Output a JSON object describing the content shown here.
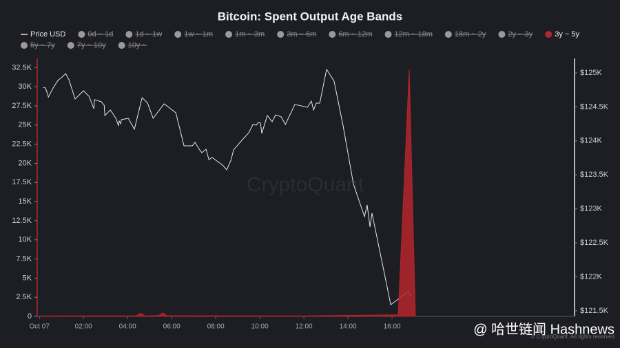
{
  "chart_data": {
    "type": "line-area",
    "title": "Bitcoin: Spent Output Age Bands",
    "watermark": "CryptoQuant",
    "copyright": "© CryptoQuant. All rights reserved",
    "overlay_text": "@ 哈世链闻 Hashnews",
    "xlim": [
      -0.1,
      24.28
    ],
    "xticks": [
      {
        "value": 0,
        "label": "Oct 07"
      },
      {
        "value": 2,
        "label": "02:00"
      },
      {
        "value": 4,
        "label": "04:00"
      },
      {
        "value": 6,
        "label": "06:00"
      },
      {
        "value": 8,
        "label": "08:00"
      },
      {
        "value": 10,
        "label": "10:00"
      },
      {
        "value": 12,
        "label": "12:00"
      },
      {
        "value": 14,
        "label": "14:00"
      },
      {
        "value": 16,
        "label": "16:00"
      }
    ],
    "ylim": [
      0,
      33700
    ],
    "yticks": [
      0,
      {
        "value": 2500,
        "label": "2.5K"
      },
      {
        "value": 5000,
        "label": "5K"
      },
      {
        "value": 7500,
        "label": "7.5K"
      },
      {
        "value": 10000,
        "label": "10K"
      },
      {
        "value": 12500,
        "label": "12.5K"
      },
      {
        "value": 15000,
        "label": "15K"
      },
      {
        "value": 17500,
        "label": "17.5K"
      },
      {
        "value": 20000,
        "label": "20K"
      },
      {
        "value": 22500,
        "label": "22.5K"
      },
      {
        "value": 25000,
        "label": "25K"
      },
      {
        "value": 27500,
        "label": "27.5K"
      },
      {
        "value": 30000,
        "label": "30K"
      },
      {
        "value": 32500,
        "label": "32.5K"
      }
    ],
    "y2lim": [
      121419,
      125212
    ],
    "y2ticks": [
      {
        "value": 121500,
        "label": "$121.5K"
      },
      {
        "value": 122000,
        "label": "$122K"
      },
      {
        "value": 122500,
        "label": "$122.5K"
      },
      {
        "value": 123000,
        "label": "$123K"
      },
      {
        "value": 123500,
        "label": "$123.5K"
      },
      {
        "value": 124000,
        "label": "$124K"
      },
      {
        "value": 124500,
        "label": "$124.5K"
      },
      {
        "value": 125000,
        "label": "$125K"
      }
    ],
    "series": [
      {
        "name": "Price USD",
        "kind": "line",
        "axis": "y2",
        "color": "#e6e6e6",
        "visible": true,
        "x": [
          0.16,
          0.28,
          0.41,
          0.62,
          0.84,
          1.03,
          1.19,
          1.34,
          1.62,
          2.0,
          2.25,
          2.47,
          2.5,
          2.81,
          2.94,
          2.97,
          3.22,
          3.47,
          3.59,
          3.62,
          3.69,
          3.72,
          4.03,
          4.31,
          4.66,
          4.91,
          5.16,
          5.66,
          6.19,
          6.56,
          6.94,
          7.06,
          7.25,
          7.37,
          7.56,
          7.69,
          7.84,
          8.09,
          8.31,
          8.5,
          8.69,
          8.81,
          9.16,
          9.5,
          9.69,
          9.84,
          9.94,
          10.03,
          10.09,
          10.34,
          10.56,
          10.72,
          10.97,
          11.16,
          11.59,
          12.16,
          12.34,
          12.44,
          12.56,
          12.72,
          13.03,
          13.37,
          13.78,
          14.25,
          14.75,
          14.87,
          15.0,
          15.09,
          15.41,
          15.59,
          15.94,
          16.28,
          16.72,
          16.84
        ],
        "values": [
          124788,
          124777,
          124646,
          124777,
          124889,
          124939,
          124990,
          124899,
          124616,
          124737,
          124656,
          124474,
          124606,
          124575,
          124525,
          124373,
          124454,
          124332,
          124221,
          124292,
          124251,
          124312,
          124332,
          124171,
          124636,
          124555,
          124332,
          124545,
          124413,
          123928,
          123928,
          123979,
          123877,
          123827,
          123877,
          123725,
          123756,
          123695,
          123644,
          123574,
          123715,
          123867,
          123999,
          124120,
          124241,
          124231,
          124272,
          124262,
          124110,
          124373,
          124282,
          124383,
          124353,
          124241,
          124535,
          124494,
          124585,
          124454,
          124555,
          124555,
          125051,
          124879,
          124221,
          123361,
          122886,
          123058,
          122734,
          122937,
          122431,
          122148,
          121591,
          121672,
          121783,
          121723
        ]
      },
      {
        "name": "0d ~ 1d",
        "color": "#9a9a9a",
        "visible": false
      },
      {
        "name": "1d ~ 1w",
        "color": "#9a9a9a",
        "visible": false
      },
      {
        "name": "1w ~ 1m",
        "color": "#9a9a9a",
        "visible": false
      },
      {
        "name": "1m ~ 3m",
        "color": "#9a9a9a",
        "visible": false
      },
      {
        "name": "3m ~ 6m",
        "color": "#9a9a9a",
        "visible": false
      },
      {
        "name": "6m ~ 12m",
        "color": "#9a9a9a",
        "visible": false
      },
      {
        "name": "12m ~ 18m",
        "color": "#9a9a9a",
        "visible": false
      },
      {
        "name": "18m ~ 2y",
        "color": "#9a9a9a",
        "visible": false
      },
      {
        "name": "2y ~ 3y",
        "color": "#9a9a9a",
        "visible": false
      },
      {
        "name": "3y ~ 5y",
        "kind": "area",
        "axis": "y",
        "color": "#b3262b",
        "visible": true,
        "x": [
          0,
          4.4,
          4.6,
          4.8,
          5.4,
          5.6,
          5.8,
          12,
          16.28,
          16.78,
          17.06
        ],
        "values": [
          50,
          80,
          400,
          60,
          100,
          450,
          80,
          60,
          200,
          32200,
          0
        ]
      },
      {
        "name": "5y ~ 7y",
        "color": "#9a9a9a",
        "visible": false
      },
      {
        "name": "7y ~ 10y",
        "color": "#9a9a9a",
        "visible": false
      },
      {
        "name": "10y ~",
        "color": "#9a9a9a",
        "visible": false
      }
    ]
  }
}
